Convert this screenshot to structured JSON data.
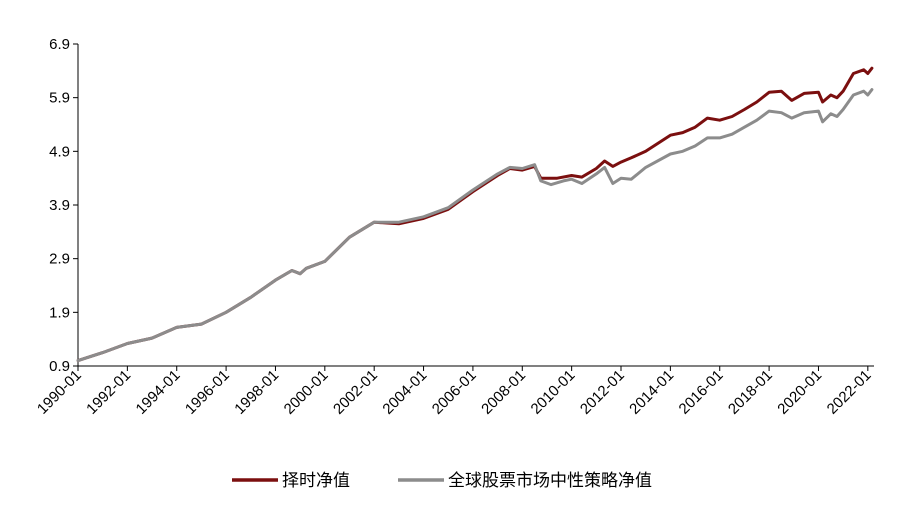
{
  "chart_data": {
    "type": "line",
    "title": "",
    "xlabel": "",
    "ylabel": "",
    "ylim": [
      0.9,
      6.9
    ],
    "xlim": [
      "1990-01",
      "2022-04"
    ],
    "y_ticks": [
      "0.9",
      "1.9",
      "2.9",
      "3.9",
      "4.9",
      "5.9",
      "6.9"
    ],
    "x_ticks": [
      "1990-01",
      "1992-01",
      "1994-01",
      "1996-01",
      "1998-01",
      "2000-01",
      "2002-01",
      "2004-01",
      "2006-01",
      "2008-01",
      "2010-01",
      "2012-01",
      "2014-01",
      "2016-01",
      "2018-01",
      "2020-01",
      "2022-01"
    ],
    "grid": false,
    "legend_position": "bottom",
    "series": [
      {
        "name": "择时净值",
        "color": "#7b0f0f",
        "points": [
          [
            "1990-01",
            1.0
          ],
          [
            "1991-01",
            1.15
          ],
          [
            "1992-01",
            1.32
          ],
          [
            "1993-01",
            1.42
          ],
          [
            "1994-01",
            1.62
          ],
          [
            "1995-01",
            1.68
          ],
          [
            "1996-01",
            1.9
          ],
          [
            "1997-01",
            2.18
          ],
          [
            "1998-01",
            2.5
          ],
          [
            "1998-09",
            2.68
          ],
          [
            "1999-01",
            2.62
          ],
          [
            "1999-04",
            2.72
          ],
          [
            "2000-01",
            2.85
          ],
          [
            "2001-01",
            3.3
          ],
          [
            "2002-01",
            3.58
          ],
          [
            "2003-01",
            3.55
          ],
          [
            "2004-01",
            3.65
          ],
          [
            "2005-01",
            3.82
          ],
          [
            "2006-01",
            4.15
          ],
          [
            "2007-01",
            4.45
          ],
          [
            "2007-07",
            4.58
          ],
          [
            "2008-01",
            4.55
          ],
          [
            "2008-07",
            4.62
          ],
          [
            "2008-10",
            4.4
          ],
          [
            "2009-06",
            4.4
          ],
          [
            "2010-01",
            4.45
          ],
          [
            "2010-06",
            4.42
          ],
          [
            "2011-01",
            4.58
          ],
          [
            "2011-05",
            4.72
          ],
          [
            "2011-09",
            4.62
          ],
          [
            "2012-01",
            4.7
          ],
          [
            "2012-06",
            4.78
          ],
          [
            "2013-01",
            4.9
          ],
          [
            "2014-01",
            5.2
          ],
          [
            "2014-07",
            5.25
          ],
          [
            "2015-01",
            5.35
          ],
          [
            "2015-07",
            5.52
          ],
          [
            "2016-01",
            5.48
          ],
          [
            "2016-07",
            5.55
          ],
          [
            "2017-01",
            5.68
          ],
          [
            "2017-07",
            5.82
          ],
          [
            "2018-01",
            6.0
          ],
          [
            "2018-07",
            6.02
          ],
          [
            "2018-12",
            5.85
          ],
          [
            "2019-06",
            5.98
          ],
          [
            "2020-01",
            6.0
          ],
          [
            "2020-03",
            5.82
          ],
          [
            "2020-07",
            5.95
          ],
          [
            "2020-10",
            5.9
          ],
          [
            "2021-01",
            6.02
          ],
          [
            "2021-06",
            6.35
          ],
          [
            "2021-11",
            6.42
          ],
          [
            "2022-01",
            6.35
          ],
          [
            "2022-03",
            6.45
          ]
        ]
      },
      {
        "name": "全球股票市场中性策略净值",
        "color": "#8c8c8c",
        "points": [
          [
            "1990-01",
            1.0
          ],
          [
            "1991-01",
            1.15
          ],
          [
            "1992-01",
            1.32
          ],
          [
            "1993-01",
            1.42
          ],
          [
            "1994-01",
            1.62
          ],
          [
            "1995-01",
            1.68
          ],
          [
            "1996-01",
            1.9
          ],
          [
            "1997-01",
            2.18
          ],
          [
            "1998-01",
            2.5
          ],
          [
            "1998-09",
            2.68
          ],
          [
            "1999-01",
            2.62
          ],
          [
            "1999-04",
            2.72
          ],
          [
            "2000-01",
            2.85
          ],
          [
            "2001-01",
            3.3
          ],
          [
            "2002-01",
            3.58
          ],
          [
            "2003-01",
            3.58
          ],
          [
            "2004-01",
            3.68
          ],
          [
            "2005-01",
            3.85
          ],
          [
            "2006-01",
            4.18
          ],
          [
            "2007-01",
            4.48
          ],
          [
            "2007-07",
            4.6
          ],
          [
            "2008-01",
            4.58
          ],
          [
            "2008-07",
            4.65
          ],
          [
            "2008-10",
            4.35
          ],
          [
            "2009-03",
            4.28
          ],
          [
            "2009-09",
            4.35
          ],
          [
            "2010-01",
            4.38
          ],
          [
            "2010-06",
            4.3
          ],
          [
            "2011-01",
            4.48
          ],
          [
            "2011-05",
            4.6
          ],
          [
            "2011-09",
            4.3
          ],
          [
            "2012-01",
            4.4
          ],
          [
            "2012-06",
            4.38
          ],
          [
            "2013-01",
            4.6
          ],
          [
            "2014-01",
            4.85
          ],
          [
            "2014-07",
            4.9
          ],
          [
            "2015-01",
            5.0
          ],
          [
            "2015-07",
            5.15
          ],
          [
            "2016-01",
            5.15
          ],
          [
            "2016-07",
            5.22
          ],
          [
            "2017-01",
            5.35
          ],
          [
            "2017-07",
            5.48
          ],
          [
            "2018-01",
            5.65
          ],
          [
            "2018-07",
            5.62
          ],
          [
            "2018-12",
            5.52
          ],
          [
            "2019-06",
            5.62
          ],
          [
            "2020-01",
            5.65
          ],
          [
            "2020-03",
            5.45
          ],
          [
            "2020-07",
            5.6
          ],
          [
            "2020-10",
            5.55
          ],
          [
            "2021-01",
            5.68
          ],
          [
            "2021-06",
            5.95
          ],
          [
            "2021-11",
            6.02
          ],
          [
            "2022-01",
            5.95
          ],
          [
            "2022-03",
            6.05
          ]
        ]
      }
    ]
  }
}
